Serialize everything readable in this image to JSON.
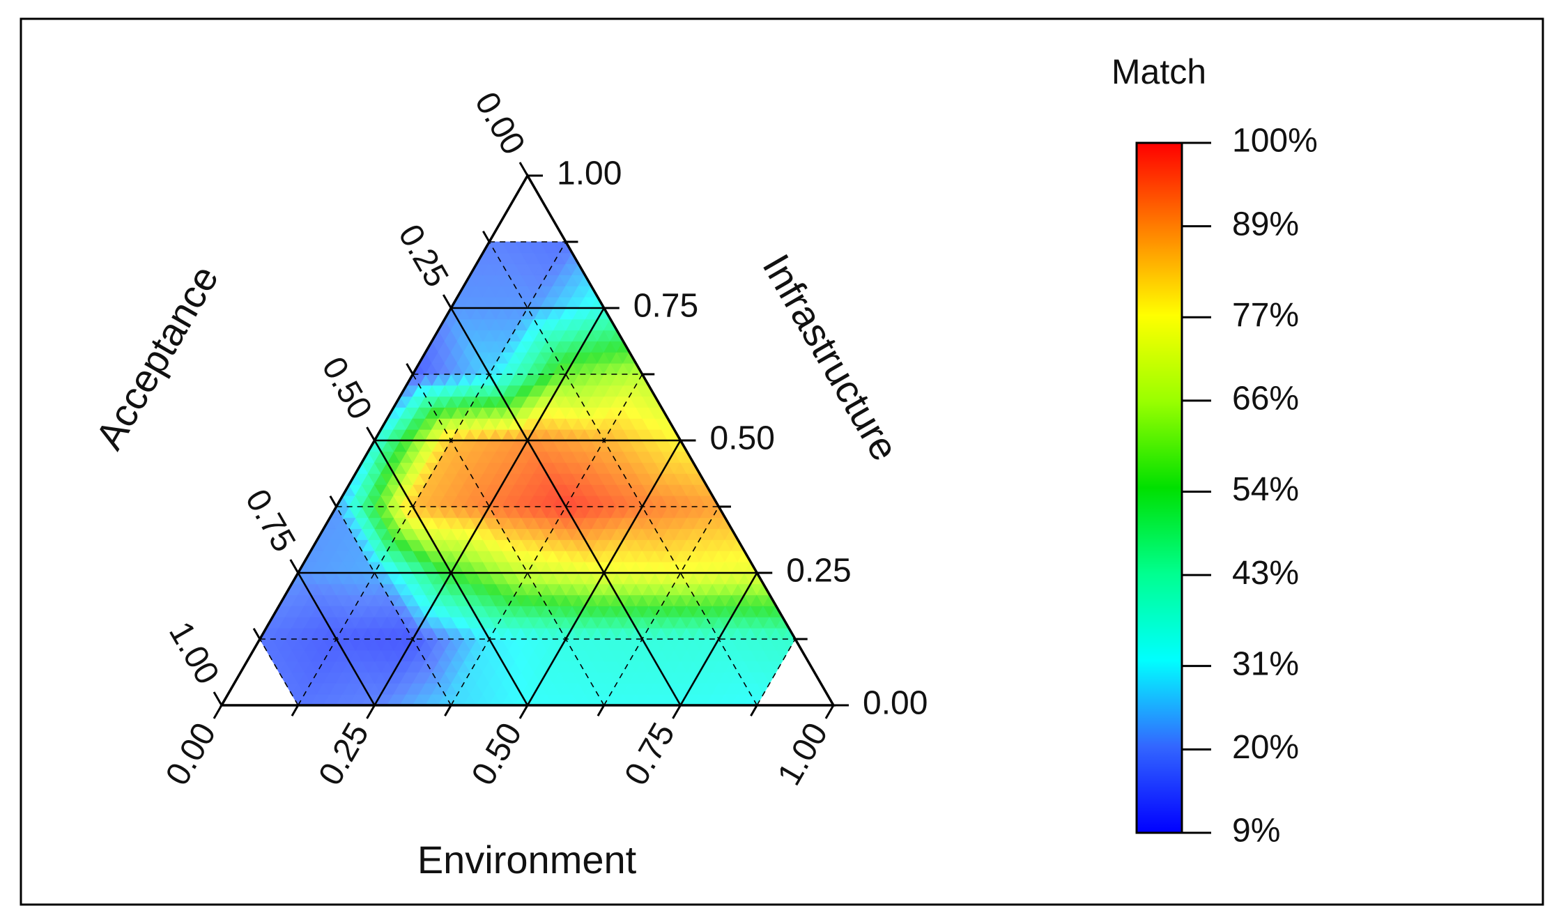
{
  "chart_data": {
    "type": "ternary",
    "x": [
      0,
      0.125,
      0.25,
      0.375,
      0.5,
      0.625,
      0.75,
      0.875,
      1
    ],
    "y": [
      0,
      0.125,
      0.25,
      0.375,
      0.5,
      0.625,
      0.75,
      0.875,
      1
    ],
    "values": [
      [
        null,
        18,
        20,
        28,
        32,
        33,
        33,
        32,
        null
      ],
      [
        18,
        15,
        14,
        30,
        35,
        36,
        36,
        38
      ],
      [
        22,
        24,
        55,
        70,
        75,
        76,
        74
      ],
      [
        22,
        85,
        92,
        98,
        92,
        88
      ],
      [
        35,
        85,
        90,
        86,
        78
      ],
      [
        15,
        28,
        60,
        68
      ],
      [
        22,
        22,
        35
      ],
      [
        20,
        18
      ],
      [
        null
      ]
    ],
    "axes": {
      "bottom": {
        "label": "Environment",
        "ticks": [
          {
            "value": 0,
            "label": "0.00"
          },
          {
            "value": 0.25,
            "label": "0.25"
          },
          {
            "value": 0.5,
            "label": "0.50"
          },
          {
            "value": 0.75,
            "label": "0.75"
          },
          {
            "value": 1,
            "label": "1.00"
          }
        ]
      },
      "right": {
        "label": "Infrastructure",
        "ticks": [
          {
            "value": 0,
            "label": "0.00"
          },
          {
            "value": 0.25,
            "label": "0.25"
          },
          {
            "value": 0.5,
            "label": "0.50"
          },
          {
            "value": 0.75,
            "label": "0.75"
          },
          {
            "value": 1,
            "label": "1.00"
          }
        ]
      },
      "left": {
        "label": "Acceptance",
        "ticks": [
          {
            "value": 0,
            "label": "0.00"
          },
          {
            "value": 0.25,
            "label": "0.25"
          },
          {
            "value": 0.5,
            "label": "0.50"
          },
          {
            "value": 0.75,
            "label": "0.75"
          },
          {
            "value": 1,
            "label": "1.00"
          }
        ]
      }
    },
    "minor_ticks": [
      0.125,
      0.375,
      0.625,
      0.875
    ],
    "colorbar": {
      "title": "Match",
      "clim": [
        9,
        100
      ],
      "colors": [
        "#0000ff",
        "#3366ff",
        "#00ffff",
        "#00ff90",
        "#00e000",
        "#99ff00",
        "#ffff00",
        "#ff8000",
        "#ff0000"
      ],
      "ticks": [
        {
          "value": 100,
          "label": "100%"
        },
        {
          "value": 89,
          "label": "89%"
        },
        {
          "value": 77,
          "label": "77%"
        },
        {
          "value": 66,
          "label": "66%"
        },
        {
          "value": 54,
          "label": "54%"
        },
        {
          "value": 43,
          "label": "43%"
        },
        {
          "value": 31,
          "label": "31%"
        },
        {
          "value": 20,
          "label": "20%"
        },
        {
          "value": 9,
          "label": "9%"
        }
      ]
    }
  }
}
